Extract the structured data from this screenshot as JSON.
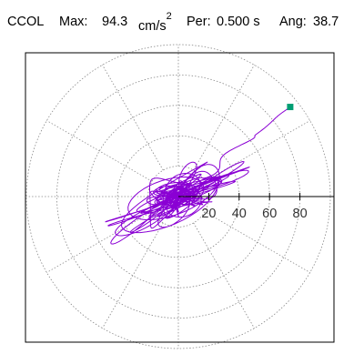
{
  "header": {
    "station": "CCOL",
    "max_label": "Max:",
    "max_value": "94.3",
    "max_unit": "cm/s",
    "max_unit_exp": "2",
    "per_label": "Per:",
    "per_value": "0.500 s",
    "ang_label": "Ang:",
    "ang_value": "38.7"
  },
  "chart_data": {
    "type": "polar-particle-motion",
    "radial_ticks": [
      "20",
      "40",
      "60",
      "80"
    ],
    "rlim": [
      0,
      100
    ],
    "grid": "dotted concentric rings and radial spokes",
    "trace_color": "#8a00d4",
    "end_marker": {
      "r": 94.3,
      "theta_deg": 38.7,
      "color": "#009e73"
    }
  }
}
